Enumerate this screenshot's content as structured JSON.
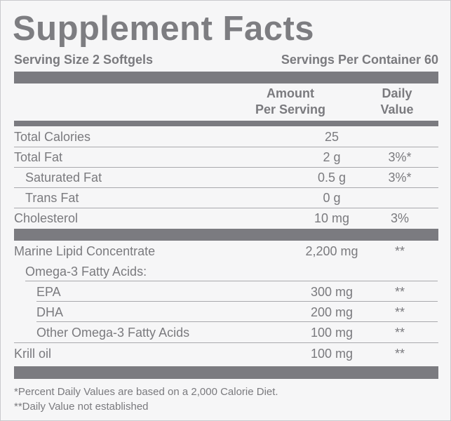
{
  "title": "Supplement Facts",
  "serving_size": "Serving Size 2 Softgels",
  "servings_per_container": "Servings Per Container 60",
  "columns": {
    "amount_line1": "Amount",
    "amount_line2": "Per Serving",
    "dv_line1": "Daily",
    "dv_line2": "Value"
  },
  "rows": [
    {
      "name": "Total Calories",
      "amount": "25",
      "dv": ""
    },
    {
      "name": "Total Fat",
      "amount": "2 g",
      "dv": "3%*"
    },
    {
      "name": "Saturated Fat",
      "amount": "0.5 g",
      "dv": "3%*"
    },
    {
      "name": "Trans Fat",
      "amount": "0 g",
      "dv": ""
    },
    {
      "name": "Cholesterol",
      "amount": "10 mg",
      "dv": "3%"
    },
    {
      "name": "Marine Lipid Concentrate",
      "amount": "2,200 mg",
      "dv": "**"
    },
    {
      "name": "Omega-3 Fatty Acids:",
      "amount": "",
      "dv": ""
    },
    {
      "name": "EPA",
      "amount": "300 mg",
      "dv": "**"
    },
    {
      "name": "DHA",
      "amount": "200 mg",
      "dv": "**"
    },
    {
      "name": "Other Omega-3 Fatty Acids",
      "amount": "100 mg",
      "dv": "**"
    },
    {
      "name": "Krill oil",
      "amount": "100 mg",
      "dv": "**"
    }
  ],
  "footnotes": [
    "*Percent Daily Values are based on a 2,000 Calorie Diet.",
    "**Daily Value not established"
  ]
}
